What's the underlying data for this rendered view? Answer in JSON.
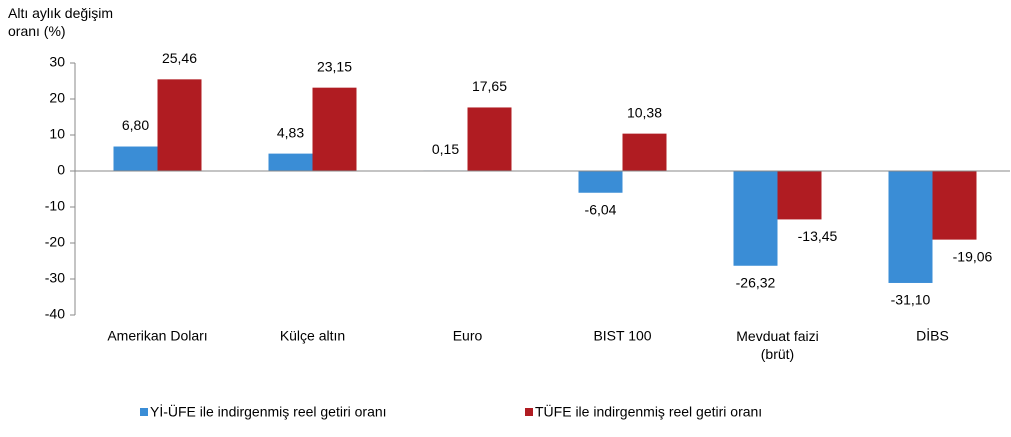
{
  "chart_data": {
    "type": "bar",
    "y_axis_label": "Altı aylık değişim oranı (%)",
    "categories": [
      "Amerikan Doları",
      "Külçe altın",
      "Euro",
      "BIST 100",
      "Mevduat faizi (brüt)",
      "DİBS"
    ],
    "series": [
      {
        "name": "Yİ-ÜFE ile indirgenmiş reel getiri oranı",
        "color": "#3a8dd6",
        "values": [
          6.8,
          4.83,
          0.15,
          -6.04,
          -26.32,
          -31.1
        ],
        "value_labels": [
          "6,80",
          "4,83",
          "0,15",
          "-6,04",
          "-26,32",
          "-31,10"
        ]
      },
      {
        "name": "TÜFE ile indirgenmiş reel getiri oranı",
        "color": "#b01c22",
        "values": [
          25.46,
          23.15,
          17.65,
          10.38,
          -13.45,
          -19.06
        ],
        "value_labels": [
          "25,46",
          "23,15",
          "17,65",
          "10,38",
          "-13,45",
          "-19,06"
        ]
      }
    ],
    "ylim": [
      -40,
      30
    ],
    "yticks": [
      -40,
      -30,
      -20,
      -10,
      0,
      10,
      20,
      30
    ],
    "legend": "bottom"
  }
}
